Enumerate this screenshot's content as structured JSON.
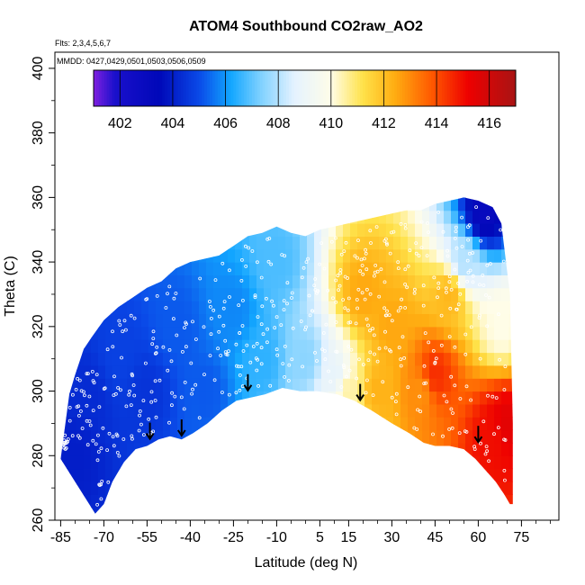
{
  "chart_data": {
    "type": "heatmap",
    "title": "ATOM4 Southbound CO2raw_AO2",
    "subtitle_flights": "Flts: 2,3,4,5,6,7",
    "subtitle_dates": "MMDD: 0427,0429,0501,0503,0506,0509",
    "xlabel": "Latitude (deg N)",
    "ylabel": "Theta (C)",
    "xlim": [
      -87,
      88
    ],
    "ylim": [
      260,
      405
    ],
    "x_ticks": [
      -85,
      -70,
      -55,
      -40,
      -25,
      -10,
      5,
      15,
      30,
      45,
      60,
      75
    ],
    "y_ticks": [
      260,
      280,
      300,
      320,
      340,
      360,
      380,
      400
    ],
    "colorbar": {
      "min": 401,
      "max": 417,
      "tick_labels": [
        402,
        404,
        406,
        408,
        410,
        412,
        414,
        416
      ],
      "color_stops": [
        {
          "value": 401.0,
          "color": "#8020e0"
        },
        {
          "value": 401.8,
          "color": "#1a10cc"
        },
        {
          "value": 403.5,
          "color": "#0008b8"
        },
        {
          "value": 405.0,
          "color": "#0a4ae8"
        },
        {
          "value": 406.2,
          "color": "#12a6ff"
        },
        {
          "value": 407.3,
          "color": "#7cd0ff"
        },
        {
          "value": 408.6,
          "color": "#e4f2ff"
        },
        {
          "value": 410.0,
          "color": "#fffde8"
        },
        {
          "value": 411.2,
          "color": "#ffe24a"
        },
        {
          "value": 412.4,
          "color": "#ffae12"
        },
        {
          "value": 413.8,
          "color": "#ff5a00"
        },
        {
          "value": 415.2,
          "color": "#ee0000"
        },
        {
          "value": 417.0,
          "color": "#a81414"
        }
      ]
    },
    "domain_bottom_boundary": [
      {
        "lat": -73,
        "theta": 262
      },
      {
        "lat": -70,
        "theta": 265
      },
      {
        "lat": -67,
        "theta": 272
      },
      {
        "lat": -63,
        "theta": 278
      },
      {
        "lat": -59,
        "theta": 282
      },
      {
        "lat": -55,
        "theta": 283
      },
      {
        "lat": -51,
        "theta": 285
      },
      {
        "lat": -47,
        "theta": 286
      },
      {
        "lat": -43,
        "theta": 285
      },
      {
        "lat": -39,
        "theta": 287
      },
      {
        "lat": -34,
        "theta": 290
      },
      {
        "lat": -29,
        "theta": 294
      },
      {
        "lat": -24,
        "theta": 297
      },
      {
        "lat": -19,
        "theta": 298
      },
      {
        "lat": -14,
        "theta": 299
      },
      {
        "lat": -8,
        "theta": 301
      },
      {
        "lat": -2,
        "theta": 300
      },
      {
        "lat": 4,
        "theta": 300
      },
      {
        "lat": 11,
        "theta": 299
      },
      {
        "lat": 17,
        "theta": 297
      },
      {
        "lat": 23,
        "theta": 294
      },
      {
        "lat": 30,
        "theta": 290
      },
      {
        "lat": 36,
        "theta": 287
      },
      {
        "lat": 41,
        "theta": 284
      },
      {
        "lat": 45,
        "theta": 283
      },
      {
        "lat": 50,
        "theta": 283
      },
      {
        "lat": 55,
        "theta": 282
      },
      {
        "lat": 59,
        "theta": 279
      },
      {
        "lat": 62,
        "theta": 276
      },
      {
        "lat": 66,
        "theta": 272
      },
      {
        "lat": 69,
        "theta": 268
      },
      {
        "lat": 71,
        "theta": 265
      }
    ],
    "domain_top_boundary": [
      {
        "lat": -85,
        "theta": 279
      },
      {
        "lat": -82,
        "theta": 299
      },
      {
        "lat": -80,
        "theta": 305
      },
      {
        "lat": -77,
        "theta": 313
      },
      {
        "lat": -74,
        "theta": 317
      },
      {
        "lat": -70,
        "theta": 322
      },
      {
        "lat": -65,
        "theta": 326
      },
      {
        "lat": -60,
        "theta": 329
      },
      {
        "lat": -55,
        "theta": 332
      },
      {
        "lat": -50,
        "theta": 334
      },
      {
        "lat": -45,
        "theta": 338
      },
      {
        "lat": -40,
        "theta": 340
      },
      {
        "lat": -35,
        "theta": 341
      },
      {
        "lat": -30,
        "theta": 342
      },
      {
        "lat": -25,
        "theta": 345
      },
      {
        "lat": -20,
        "theta": 348
      },
      {
        "lat": -15,
        "theta": 349
      },
      {
        "lat": -10,
        "theta": 351
      },
      {
        "lat": -5,
        "theta": 349
      },
      {
        "lat": 0,
        "theta": 348
      },
      {
        "lat": 5,
        "theta": 350
      },
      {
        "lat": 10,
        "theta": 351
      },
      {
        "lat": 15,
        "theta": 352
      },
      {
        "lat": 20,
        "theta": 353
      },
      {
        "lat": 25,
        "theta": 354
      },
      {
        "lat": 30,
        "theta": 355
      },
      {
        "lat": 35,
        "theta": 356
      },
      {
        "lat": 40,
        "theta": 356
      },
      {
        "lat": 45,
        "theta": 358
      },
      {
        "lat": 50,
        "theta": 359
      },
      {
        "lat": 55,
        "theta": 360
      },
      {
        "lat": 60,
        "theta": 359
      },
      {
        "lat": 65,
        "theta": 357
      },
      {
        "lat": 68,
        "theta": 352
      },
      {
        "lat": 71,
        "theta": 330
      },
      {
        "lat": 72,
        "theta": 290
      },
      {
        "lat": 72,
        "theta": 265
      }
    ],
    "representative_field": [
      {
        "lat": -80,
        "theta": 280,
        "co2": 404.0
      },
      {
        "lat": -75,
        "theta": 300,
        "co2": 404.3
      },
      {
        "lat": -65,
        "theta": 310,
        "co2": 404.8
      },
      {
        "lat": -55,
        "theta": 300,
        "co2": 404.5
      },
      {
        "lat": -45,
        "theta": 320,
        "co2": 405.2
      },
      {
        "lat": -35,
        "theta": 300,
        "co2": 405.2
      },
      {
        "lat": -25,
        "theta": 325,
        "co2": 405.8
      },
      {
        "lat": -15,
        "theta": 310,
        "co2": 406.5
      },
      {
        "lat": -10,
        "theta": 340,
        "co2": 406.8
      },
      {
        "lat": 0,
        "theta": 310,
        "co2": 407.5
      },
      {
        "lat": 10,
        "theta": 305,
        "co2": 408.8
      },
      {
        "lat": 15,
        "theta": 300,
        "co2": 410.5
      },
      {
        "lat": 20,
        "theta": 330,
        "co2": 412.5
      },
      {
        "lat": 25,
        "theta": 300,
        "co2": 412.3
      },
      {
        "lat": 30,
        "theta": 320,
        "co2": 412.5
      },
      {
        "lat": 40,
        "theta": 300,
        "co2": 412.9
      },
      {
        "lat": 45,
        "theta": 305,
        "co2": 414.5
      },
      {
        "lat": 50,
        "theta": 330,
        "co2": 412.2
      },
      {
        "lat": 55,
        "theta": 340,
        "co2": 408.0
      },
      {
        "lat": 62,
        "theta": 355,
        "co2": 403.0
      },
      {
        "lat": 65,
        "theta": 285,
        "co2": 415.0
      },
      {
        "lat": 70,
        "theta": 290,
        "co2": 415.5
      },
      {
        "lat": 68,
        "theta": 320,
        "co2": 410.0
      }
    ],
    "tropopause_arrows": [
      {
        "lat": -54,
        "theta": 288
      },
      {
        "lat": -43,
        "theta": 289
      },
      {
        "lat": -20,
        "theta": 303
      },
      {
        "lat": 19,
        "theta": 300
      },
      {
        "lat": 60,
        "theta": 287
      }
    ]
  }
}
